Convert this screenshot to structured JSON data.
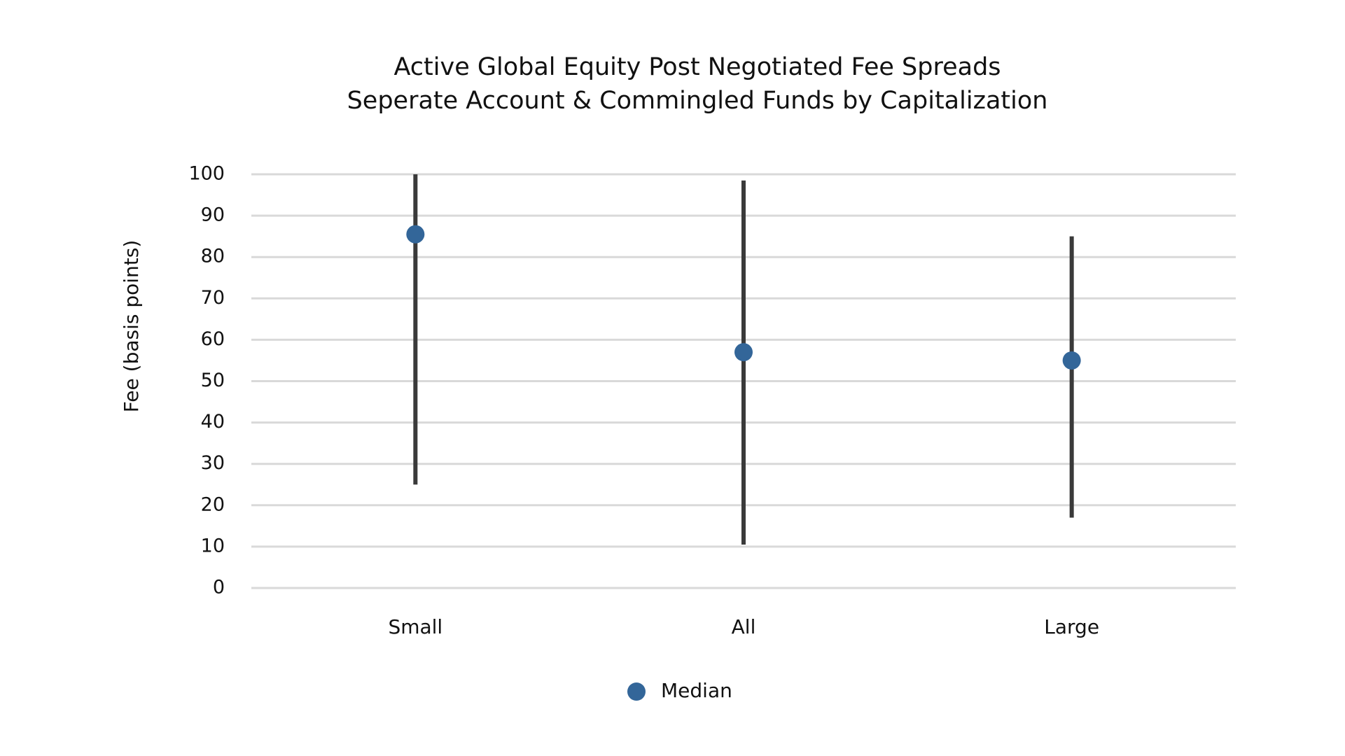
{
  "chart_data": {
    "type": "range",
    "title": [
      "Active Global Equity Post Negotiated Fee Spreads",
      "Seperate Account & Commingled Funds by Capitalization"
    ],
    "y_label": "Fee (basis points)",
    "categories": [
      "Small",
      "All",
      "Large"
    ],
    "ranges": {
      "low": [
        25,
        10.5,
        17
      ],
      "high": [
        100,
        98.5,
        85
      ],
      "color": "#3a3a3a"
    },
    "series": [
      {
        "name": "Median",
        "color": "#336699",
        "values": [
          85.5,
          57,
          55
        ]
      }
    ],
    "ylim": [
      0,
      100
    ],
    "yticks": [
      0,
      10,
      20,
      30,
      40,
      50,
      60,
      70,
      80,
      90,
      100
    ],
    "grid": true,
    "legend": "bottom"
  }
}
